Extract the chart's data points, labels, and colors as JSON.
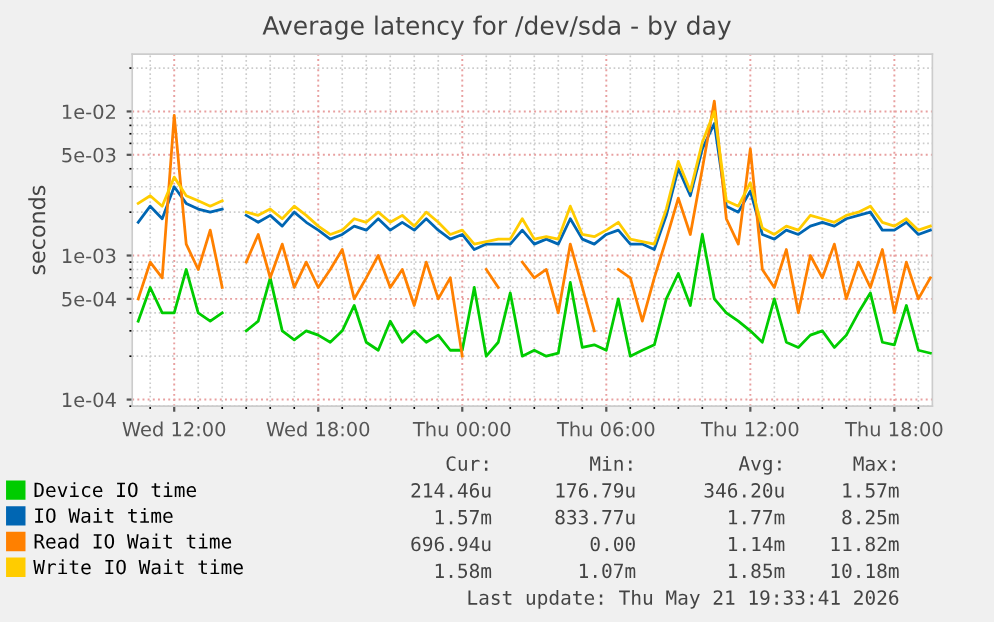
{
  "chart_data": {
    "type": "line",
    "title": "Average latency for /dev/sda - by day",
    "ylabel": "seconds",
    "log": "y",
    "grid": true,
    "legend": "bottom",
    "ylim": [
      9e-05,
      0.025
    ],
    "yticks": [
      {
        "value": 0.0001,
        "label": "1e-04"
      },
      {
        "value": 0.0005,
        "label": "5e-04"
      },
      {
        "value": 0.001,
        "label": "1e-03"
      },
      {
        "value": 0.005,
        "label": "5e-03"
      },
      {
        "value": 0.01,
        "label": "1e-02"
      }
    ],
    "xlim": [
      "2026-05-20T10:15",
      "2026-05-21T19:35"
    ],
    "xticks": [
      {
        "value": "2026-05-20T12:00",
        "label": "Wed 12:00"
      },
      {
        "value": "2026-05-20T18:00",
        "label": "Wed 18:00"
      },
      {
        "value": "2026-05-21T00:00",
        "label": "Thu 00:00"
      },
      {
        "value": "2026-05-21T06:00",
        "label": "Thu 06:00"
      },
      {
        "value": "2026-05-21T12:00",
        "label": "Thu 12:00"
      },
      {
        "value": "2026-05-21T18:00",
        "label": "Thu 18:00"
      }
    ],
    "x": [
      "2026-05-20T10:30",
      "2026-05-20T11:00",
      "2026-05-20T11:30",
      "2026-05-20T12:00",
      "2026-05-20T12:30",
      "2026-05-20T13:00",
      "2026-05-20T13:30",
      "2026-05-20T14:00",
      "2026-05-20T14:30",
      "2026-05-20T15:00",
      "2026-05-20T15:30",
      "2026-05-20T16:00",
      "2026-05-20T16:30",
      "2026-05-20T17:00",
      "2026-05-20T17:30",
      "2026-05-20T18:00",
      "2026-05-20T18:30",
      "2026-05-20T19:00",
      "2026-05-20T19:30",
      "2026-05-20T20:00",
      "2026-05-20T20:30",
      "2026-05-20T21:00",
      "2026-05-20T21:30",
      "2026-05-20T22:00",
      "2026-05-20T22:30",
      "2026-05-20T23:00",
      "2026-05-20T23:30",
      "2026-05-21T00:00",
      "2026-05-21T00:30",
      "2026-05-21T01:00",
      "2026-05-21T01:30",
      "2026-05-21T02:00",
      "2026-05-21T02:30",
      "2026-05-21T03:00",
      "2026-05-21T03:30",
      "2026-05-21T04:00",
      "2026-05-21T04:30",
      "2026-05-21T05:00",
      "2026-05-21T05:30",
      "2026-05-21T06:00",
      "2026-05-21T06:30",
      "2026-05-21T07:00",
      "2026-05-21T07:30",
      "2026-05-21T08:00",
      "2026-05-21T08:30",
      "2026-05-21T09:00",
      "2026-05-21T09:30",
      "2026-05-21T10:00",
      "2026-05-21T10:30",
      "2026-05-21T11:00",
      "2026-05-21T11:30",
      "2026-05-21T12:00",
      "2026-05-21T12:30",
      "2026-05-21T13:00",
      "2026-05-21T13:30",
      "2026-05-21T14:00",
      "2026-05-21T14:30",
      "2026-05-21T15:00",
      "2026-05-21T15:30",
      "2026-05-21T16:00",
      "2026-05-21T16:30",
      "2026-05-21T17:00",
      "2026-05-21T17:30",
      "2026-05-21T18:00",
      "2026-05-21T18:30",
      "2026-05-21T19:00",
      "2026-05-21T19:30"
    ],
    "series": [
      {
        "name": "Device IO time",
        "color": "#00cc00",
        "values": [
          0.00035,
          0.0006,
          0.0004,
          0.0004,
          0.0008,
          0.0004,
          0.00035,
          0.0004,
          null,
          0.0003,
          0.00035,
          0.0007,
          0.0003,
          0.00026,
          0.0003,
          0.00028,
          0.00025,
          0.0003,
          0.00045,
          0.00025,
          0.00022,
          0.00035,
          0.00025,
          0.0003,
          0.00025,
          0.00028,
          0.00022,
          0.00022,
          0.0006,
          0.0002,
          0.00025,
          0.00055,
          0.0002,
          0.00022,
          0.0002,
          0.00021,
          0.00065,
          0.00023,
          0.00024,
          0.00022,
          0.0005,
          0.0002,
          0.00022,
          0.00024,
          0.0005,
          0.00075,
          0.00045,
          0.0014,
          0.0005,
          0.0004,
          0.00035,
          0.0003,
          0.00025,
          0.0005,
          0.00025,
          0.00023,
          0.00028,
          0.0003,
          0.00023,
          0.00028,
          0.0004,
          0.00055,
          0.00025,
          0.00024,
          0.00045,
          0.00022,
          0.00021
        ]
      },
      {
        "name": "IO Wait time",
        "color": "#0066b3",
        "values": [
          0.0017,
          0.0022,
          0.0018,
          0.003,
          0.0023,
          0.0021,
          0.002,
          0.0021,
          null,
          0.0019,
          0.0017,
          0.0019,
          0.0016,
          0.002,
          0.0017,
          0.0015,
          0.0013,
          0.0014,
          0.0016,
          0.0015,
          0.0018,
          0.0015,
          0.0017,
          0.0015,
          0.0018,
          0.0015,
          0.0013,
          0.0014,
          0.0011,
          0.0012,
          0.0012,
          0.0012,
          0.0015,
          0.0012,
          0.0013,
          0.0012,
          0.0018,
          0.0013,
          0.0012,
          0.0014,
          0.0015,
          0.0012,
          0.0012,
          0.0011,
          0.0019,
          0.004,
          0.0026,
          0.0055,
          0.00825,
          0.0022,
          0.002,
          0.0028,
          0.0014,
          0.0013,
          0.0015,
          0.0014,
          0.0016,
          0.0017,
          0.0016,
          0.0018,
          0.0019,
          0.002,
          0.0015,
          0.0015,
          0.0017,
          0.0014,
          0.0015
        ]
      },
      {
        "name": "Read IO Wait time",
        "color": "#ff8000",
        "values": [
          0.0005,
          0.0009,
          0.0007,
          0.0094,
          0.0012,
          0.0008,
          0.0015,
          0.0006,
          null,
          0.0009,
          0.0014,
          0.0007,
          0.0012,
          0.0006,
          0.0009,
          0.0006,
          0.0008,
          0.0011,
          0.0005,
          0.0007,
          0.001,
          0.0006,
          0.0008,
          0.00045,
          0.0009,
          0.0005,
          0.0007,
          0.0002,
          null,
          0.0008,
          0.0006,
          null,
          0.0009,
          0.0007,
          0.0008,
          0.0004,
          0.0012,
          0.0006,
          0.0003,
          null,
          0.0008,
          0.0007,
          0.00035,
          0.0007,
          0.0013,
          0.0025,
          0.0014,
          0.004,
          0.0118,
          0.0018,
          0.0012,
          0.0055,
          0.0008,
          0.0006,
          0.0011,
          0.0004,
          0.001,
          0.0007,
          0.0012,
          0.0005,
          0.0009,
          0.0006,
          0.0011,
          0.0004,
          0.0009,
          0.0005,
          0.0007
        ]
      },
      {
        "name": "Write IO Wait time",
        "color": "#ffcc00",
        "values": [
          0.0023,
          0.0026,
          0.0022,
          0.0035,
          0.0026,
          0.0024,
          0.0022,
          0.0024,
          null,
          0.002,
          0.0019,
          0.0021,
          0.0018,
          0.0022,
          0.0019,
          0.0016,
          0.0014,
          0.0015,
          0.0018,
          0.0017,
          0.002,
          0.0017,
          0.0019,
          0.0016,
          0.002,
          0.0017,
          0.0014,
          0.0015,
          0.0012,
          0.00125,
          0.0013,
          0.0013,
          0.0018,
          0.0013,
          0.00135,
          0.0013,
          0.0022,
          0.0014,
          0.00135,
          0.0015,
          0.0017,
          0.0013,
          0.00125,
          0.0012,
          0.0021,
          0.0045,
          0.0028,
          0.0061,
          0.01,
          0.0024,
          0.0022,
          0.0032,
          0.00155,
          0.0014,
          0.0016,
          0.0015,
          0.0019,
          0.0018,
          0.0017,
          0.0019,
          0.002,
          0.0022,
          0.0017,
          0.0016,
          0.0018,
          0.0015,
          0.0016
        ]
      }
    ],
    "annotations": [
      "Cur:",
      "Min:",
      "Avg:",
      "Max:",
      "214.46u",
      "176.79u",
      "346.20u",
      "1.57m",
      "1.57m",
      "833.77u",
      "1.77m",
      "8.25m",
      "696.94u",
      "0.00",
      "1.14m",
      "11.82m",
      "1.58m",
      "1.07m",
      "1.85m",
      "10.18m",
      "Last update: Thu May 21 19:33:41 2026"
    ]
  }
}
